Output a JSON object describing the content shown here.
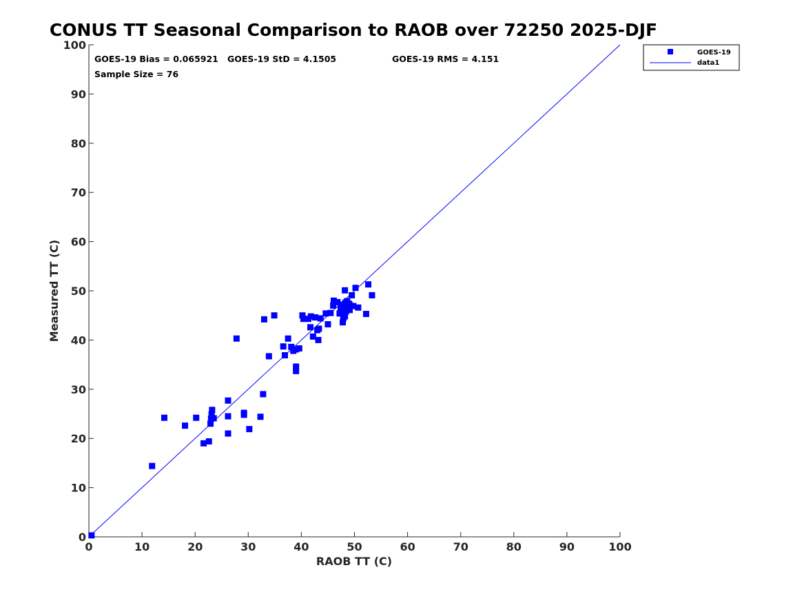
{
  "chart_data": {
    "type": "scatter",
    "title": "CONUS TT Seasonal Comparison to RAOB over 72250 2025-DJF",
    "xlabel": "RAOB TT (C)",
    "ylabel": "Measured TT (C)",
    "xlim": [
      0,
      100
    ],
    "ylim": [
      0,
      100
    ],
    "xticks": [
      0,
      10,
      20,
      30,
      40,
      50,
      60,
      70,
      80,
      90,
      100
    ],
    "yticks": [
      0,
      10,
      20,
      30,
      40,
      50,
      60,
      70,
      80,
      90,
      100
    ],
    "grid": false,
    "legend_position": "top-right outside",
    "annotations": {
      "bias": "GOES-19 Bias = 0.065921",
      "std": "GOES-19 StD = 4.1505",
      "rms": "GOES-19 RMS = 4.151",
      "sample": "Sample Size = 76"
    },
    "series": [
      {
        "name": "GOES-19",
        "marker": "square",
        "color": "#0000ff",
        "points": [
          [
            0.5,
            0.3
          ],
          [
            11.9,
            14.4
          ],
          [
            14.2,
            24.2
          ],
          [
            18.1,
            22.6
          ],
          [
            20.2,
            24.2
          ],
          [
            21.6,
            19.0
          ],
          [
            22.6,
            19.4
          ],
          [
            22.9,
            23.0
          ],
          [
            23.0,
            24.0
          ],
          [
            23.1,
            24.9
          ],
          [
            23.2,
            25.8
          ],
          [
            23.5,
            24.1
          ],
          [
            26.2,
            27.7
          ],
          [
            26.2,
            24.5
          ],
          [
            26.2,
            21.0
          ],
          [
            27.8,
            40.3
          ],
          [
            29.2,
            25.2
          ],
          [
            29.2,
            24.8
          ],
          [
            30.2,
            21.9
          ],
          [
            32.3,
            24.4
          ],
          [
            32.8,
            29.0
          ],
          [
            33.0,
            44.2
          ],
          [
            33.9,
            36.7
          ],
          [
            34.9,
            45.0
          ],
          [
            36.6,
            38.7
          ],
          [
            36.9,
            36.9
          ],
          [
            37.5,
            40.3
          ],
          [
            38.1,
            38.6
          ],
          [
            38.5,
            37.8
          ],
          [
            39.0,
            38.1
          ],
          [
            39.0,
            34.6
          ],
          [
            39.0,
            33.7
          ],
          [
            39.6,
            38.3
          ],
          [
            40.2,
            45.0
          ],
          [
            40.4,
            44.3
          ],
          [
            41.3,
            44.3
          ],
          [
            41.7,
            42.6
          ],
          [
            41.8,
            44.8
          ],
          [
            42.2,
            40.7
          ],
          [
            42.6,
            44.6
          ],
          [
            43.0,
            42.0
          ],
          [
            43.2,
            40.0
          ],
          [
            43.3,
            42.3
          ],
          [
            43.6,
            44.4
          ],
          [
            44.6,
            45.4
          ],
          [
            45.0,
            43.2
          ],
          [
            45.5,
            45.5
          ],
          [
            46.0,
            47.0
          ],
          [
            46.1,
            48.0
          ],
          [
            46.8,
            47.7
          ],
          [
            47.2,
            45.4
          ],
          [
            47.4,
            46.5
          ],
          [
            47.5,
            47.2
          ],
          [
            47.8,
            43.6
          ],
          [
            47.9,
            44.4
          ],
          [
            48.0,
            45.6
          ],
          [
            48.1,
            46.8
          ],
          [
            48.2,
            44.8
          ],
          [
            48.2,
            50.1
          ],
          [
            48.3,
            47.6
          ],
          [
            48.4,
            45.8
          ],
          [
            48.5,
            46.2
          ],
          [
            48.6,
            47.9
          ],
          [
            48.8,
            46.5
          ],
          [
            49.0,
            47.3
          ],
          [
            49.2,
            47.0
          ],
          [
            49.5,
            49.1
          ],
          [
            49.8,
            46.9
          ],
          [
            50.2,
            50.6
          ],
          [
            50.7,
            46.6
          ],
          [
            52.2,
            45.3
          ],
          [
            52.6,
            51.3
          ],
          [
            53.3,
            49.1
          ],
          [
            47.6,
            46.0
          ],
          [
            49.1,
            46.1
          ],
          [
            48.9,
            47.4
          ]
        ]
      },
      {
        "name": "data1",
        "kind": "line",
        "color": "#0000ff",
        "x": [
          0,
          100
        ],
        "y": [
          0,
          100
        ]
      }
    ]
  }
}
